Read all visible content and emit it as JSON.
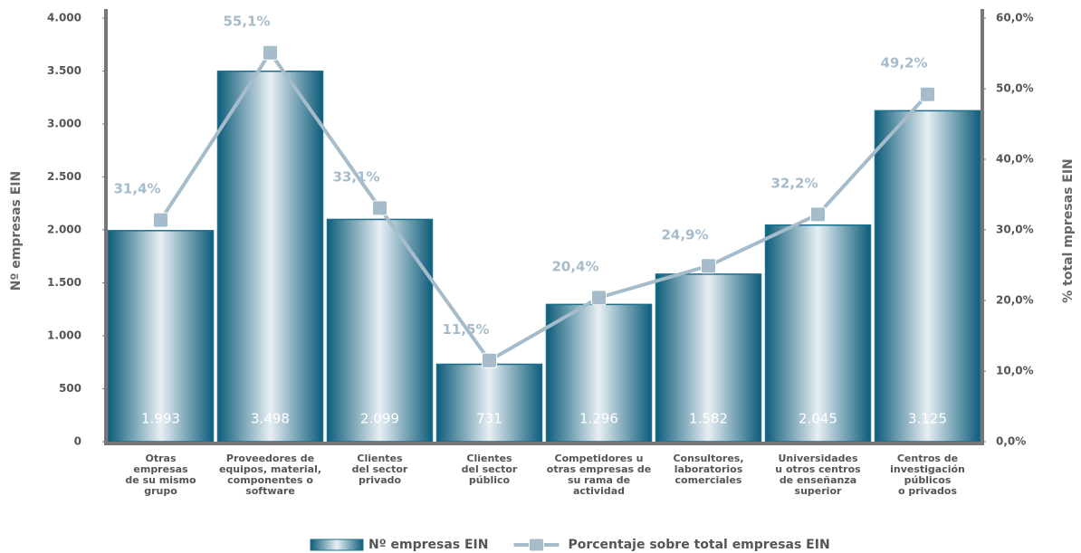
{
  "chart_data": {
    "type": "bar-line",
    "y_label": "Nº empresas EIN",
    "y2_label": "% total mpresas EIN",
    "categories": [
      "Otras\nempresas\nde su mismo\ngrupo",
      "Proveedores de\nequipos, material,\ncomponentes o\nsoftware",
      "Clientes\ndel sector\nprivado",
      "Clientes\ndel sector\npúblico",
      "Competidores u\notras empresas de\nsu rama de\nactividad",
      "Consultores,\nlaboratorios\ncomerciales",
      "Universidades\nu otros centros\nde enseñanza\nsuperior",
      "Centros de\ninvestigación\npúblicos\no privados"
    ],
    "series": [
      {
        "name": "Nº empresas EIN",
        "type": "bar",
        "color": "#1a6f8d",
        "values": [
          1993,
          3498,
          2099,
          731,
          1296,
          1582,
          2045,
          3125
        ],
        "value_labels": [
          "1.993",
          "3.498",
          "2.099",
          "731",
          "1.296",
          "1.582",
          "2.045",
          "3.125"
        ]
      },
      {
        "name": "Porcentaje sobre total empresas EIN",
        "type": "line",
        "axis": "y2",
        "color": "#a6bccb",
        "values": [
          31.4,
          55.1,
          33.1,
          11.5,
          20.4,
          24.9,
          32.2,
          49.2
        ],
        "value_labels": [
          "31,4%",
          "55,1%",
          "33,1%",
          "11,5%",
          "20,4%",
          "24,9%",
          "32,2%",
          "49,2%"
        ]
      }
    ],
    "ylim": [
      0,
      4000
    ],
    "yticks": [
      0,
      500,
      {
        "value": 1000,
        "label": "1.000"
      },
      {
        "value": 1500,
        "label": "1.500"
      },
      {
        "value": 2000,
        "label": "2.000"
      },
      {
        "value": 2500,
        "label": "2.500"
      },
      {
        "value": 3000,
        "label": "3.000"
      },
      {
        "value": 3500,
        "label": "3.500"
      },
      {
        "value": 4000,
        "label": "4.000"
      }
    ],
    "y2lim": [
      0,
      60
    ],
    "y2ticks": [
      {
        "value": 0,
        "label": "0,0%"
      },
      {
        "value": 10,
        "label": "10,0%"
      },
      {
        "value": 20,
        "label": "20,0%"
      },
      {
        "value": 30,
        "label": "30,0%"
      },
      {
        "value": 40,
        "label": "40,0%"
      },
      {
        "value": 50,
        "label": "50,0%"
      },
      {
        "value": 60,
        "label": "60,0%"
      }
    ]
  }
}
